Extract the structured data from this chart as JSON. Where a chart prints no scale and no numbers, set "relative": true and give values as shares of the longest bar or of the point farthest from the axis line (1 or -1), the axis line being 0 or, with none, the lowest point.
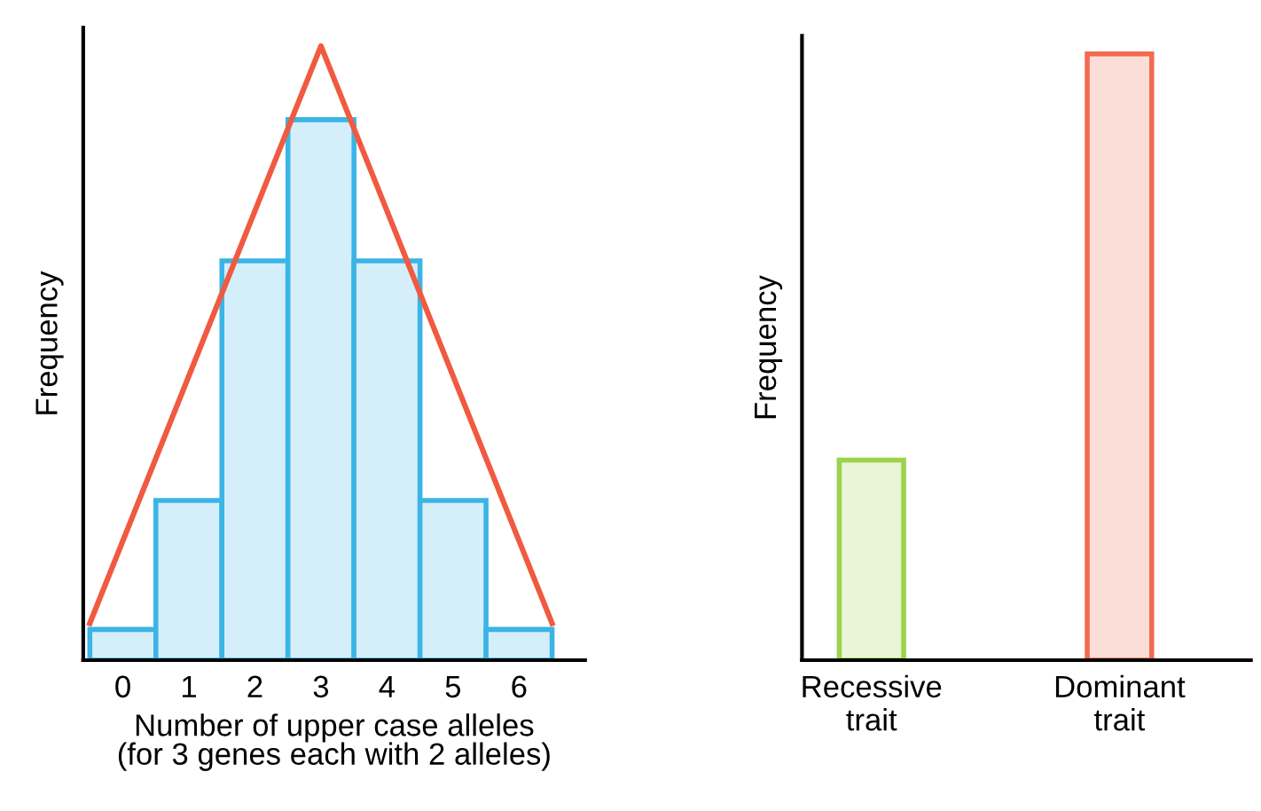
{
  "chart_data": [
    {
      "type": "histogram",
      "relative": true,
      "xlabel": "Number of upper case alleles\n(for 3 genes each with 2 alleles)",
      "ylabel": "Frequency",
      "bins": [
        -0.5,
        0.5,
        1.5,
        2.5,
        3.5,
        4.5,
        5.5,
        6.5
      ],
      "xlim": [
        -0.6,
        7
      ],
      "xticks": [
        0,
        1,
        2,
        3,
        4,
        5,
        6
      ],
      "series": [
        {
          "type": "histogram",
          "color": "#3bb4e6",
          "values": [
            0.05,
            0.26,
            0.65,
            0.88,
            0.65,
            0.26,
            0.05
          ]
        },
        {
          "type": "line",
          "color": "#f05a40",
          "x": [
            -0.5,
            3,
            6.5
          ],
          "values": [
            0.06,
            1,
            0.06
          ]
        }
      ]
    },
    {
      "type": "bar",
      "relative": true,
      "ylabel": "Frequency",
      "categories": [
        "Recessive\ntrait",
        "Dominant\ntrait"
      ],
      "values": [
        0.33,
        1
      ],
      "colors": [
        "#9bd34a",
        "#f26a50"
      ]
    }
  ]
}
